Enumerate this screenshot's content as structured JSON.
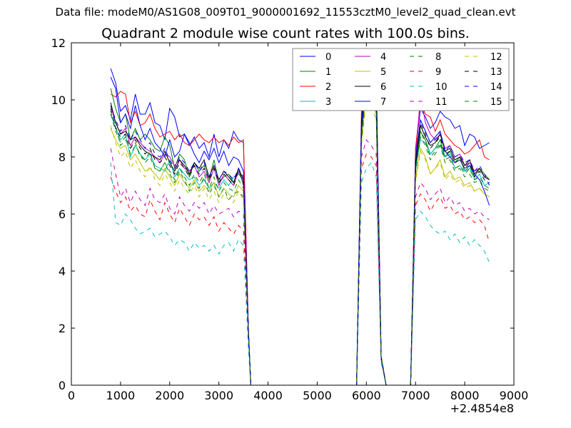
{
  "suptitle": "Data file: modeM0/AS1G08_009T01_9000001692_11553cztM0_level2_quad_clean.evt",
  "chart_data": {
    "type": "line",
    "title": "Quadrant 2 module wise count rates with 100.0s bins.",
    "xlabel": "",
    "ylabel": "",
    "x_offset_label": "+2.4854e8",
    "xlim": [
      0,
      9000
    ],
    "ylim": [
      0,
      12
    ],
    "xticks": [
      "0",
      "1000",
      "2000",
      "3000",
      "4000",
      "5000",
      "6000",
      "7000",
      "8000",
      "9000"
    ],
    "yticks": [
      "0",
      "2",
      "4",
      "6",
      "8",
      "10",
      "12"
    ],
    "grid": false,
    "legend_position": "top-right",
    "legend_columns": 4,
    "x": [
      800,
      900,
      1000,
      1100,
      1200,
      1300,
      1400,
      1500,
      1600,
      1700,
      1800,
      1900,
      2000,
      2100,
      2200,
      2300,
      2400,
      2500,
      2600,
      2700,
      2800,
      2900,
      3000,
      3100,
      3200,
      3300,
      3400,
      3500,
      3600,
      3650,
      3700,
      5800,
      5900,
      6000,
      6100,
      6200,
      6300,
      6400,
      6500,
      6900,
      7000,
      7100,
      7200,
      7300,
      7400,
      7500,
      7600,
      7700,
      7800,
      7900,
      8000,
      8100,
      8200,
      8300,
      8400,
      8500
    ],
    "series": [
      {
        "name": "0",
        "color": "#0000ff",
        "dash": "solid",
        "values": [
          11.1,
          10.6,
          9.6,
          9.8,
          9.3,
          10.2,
          9.5,
          9.5,
          9.9,
          9.2,
          9.1,
          8.6,
          9.7,
          9.4,
          8.7,
          8.8,
          8.4,
          8.7,
          8.3,
          8.5,
          8.0,
          8.8,
          8.0,
          8.6,
          8.3,
          8.9,
          8.6,
          8.5,
          2.0,
          0,
          0,
          0,
          8.8,
          11.8,
          11.6,
          11.0,
          1.0,
          0,
          0,
          0,
          8.2,
          9.7,
          9.4,
          9.0,
          9.2,
          9.6,
          9.4,
          9.3,
          9.0,
          9.1,
          8.4,
          8.8,
          8.7,
          8.3,
          8.4,
          8.5
        ]
      },
      {
        "name": "1",
        "color": "#008000",
        "dash": "solid",
        "values": [
          10.4,
          9.7,
          9.2,
          9.5,
          8.6,
          9.0,
          8.6,
          8.8,
          8.6,
          8.3,
          8.2,
          8.7,
          8.4,
          7.6,
          8.1,
          7.9,
          7.3,
          7.8,
          7.5,
          7.7,
          7.2,
          7.9,
          7.1,
          7.3,
          7.4,
          7.1,
          7.6,
          7.0,
          1.9,
          0,
          0,
          0,
          9.0,
          10.6,
          10.5,
          9.8,
          1.0,
          0,
          0,
          0,
          7.5,
          8.9,
          8.6,
          8.1,
          8.3,
          8.6,
          8.0,
          8.2,
          7.8,
          8.0,
          7.5,
          7.7,
          7.3,
          7.6,
          7.4,
          7.2
        ]
      },
      {
        "name": "2",
        "color": "#ff0000",
        "dash": "solid",
        "values": [
          10.2,
          10.1,
          10.3,
          10.2,
          9.2,
          9.6,
          9.1,
          9.2,
          9.5,
          9.0,
          8.7,
          8.8,
          8.9,
          8.6,
          8.8,
          8.5,
          8.4,
          8.6,
          8.8,
          8.6,
          8.5,
          8.7,
          8.5,
          8.6,
          8.4,
          8.7,
          8.5,
          8.6,
          2.0,
          0,
          0,
          0,
          9.6,
          11.2,
          11.6,
          10.9,
          1.0,
          0,
          0,
          0,
          8.3,
          9.9,
          9.5,
          9.4,
          8.9,
          9.3,
          8.8,
          8.6,
          8.4,
          8.3,
          8.1,
          8.2,
          8.4,
          8.6,
          8.0,
          7.9
        ]
      },
      {
        "name": "3",
        "color": "#00bfbf",
        "dash": "solid",
        "values": [
          9.5,
          9.0,
          8.6,
          8.8,
          8.0,
          8.4,
          8.1,
          7.9,
          8.1,
          7.7,
          7.6,
          7.5,
          7.9,
          7.3,
          7.6,
          7.4,
          7.2,
          7.3,
          7.0,
          7.2,
          6.9,
          7.1,
          6.9,
          7.2,
          7.0,
          7.3,
          7.4,
          7.2,
          1.8,
          0,
          0,
          0,
          8.9,
          10.5,
          10.3,
          9.7,
          1.0,
          0,
          0,
          0,
          7.6,
          8.6,
          8.5,
          8.1,
          8.3,
          8.4,
          8.0,
          8.1,
          7.6,
          7.7,
          7.5,
          7.6,
          7.2,
          7.4,
          7.0,
          7.1
        ]
      },
      {
        "name": "4",
        "color": "#bf00bf",
        "dash": "solid",
        "values": [
          9.8,
          9.2,
          8.8,
          9.0,
          8.4,
          8.7,
          8.5,
          8.3,
          8.2,
          8.0,
          7.8,
          8.1,
          8.0,
          7.7,
          7.9,
          7.6,
          7.5,
          7.7,
          7.3,
          7.5,
          7.1,
          7.6,
          7.0,
          7.4,
          7.2,
          7.0,
          7.5,
          7.1,
          1.9,
          0,
          0,
          0,
          9.1,
          11.6,
          11.5,
          10.6,
          1.0,
          0,
          0,
          0,
          7.8,
          10.2,
          9.2,
          8.8,
          8.6,
          8.8,
          8.3,
          8.4,
          8.0,
          8.1,
          7.7,
          7.8,
          7.5,
          7.6,
          7.3,
          7.2
        ]
      },
      {
        "name": "5",
        "color": "#bfbf00",
        "dash": "solid",
        "values": [
          9.0,
          8.6,
          8.3,
          8.4,
          7.9,
          8.1,
          7.8,
          7.5,
          7.6,
          7.4,
          7.2,
          7.6,
          7.3,
          7.0,
          7.4,
          7.1,
          6.9,
          7.2,
          6.8,
          7.0,
          6.8,
          7.1,
          6.6,
          6.9,
          6.7,
          6.6,
          7.0,
          6.8,
          1.8,
          0,
          0,
          0,
          8.5,
          10.2,
          10.1,
          9.5,
          1.0,
          0,
          0,
          0,
          7.2,
          8.3,
          8.0,
          7.4,
          7.6,
          7.9,
          7.3,
          7.5,
          7.2,
          7.3,
          7.0,
          7.1,
          6.8,
          6.9,
          6.7,
          6.6
        ]
      },
      {
        "name": "6",
        "color": "#000000",
        "dash": "solid",
        "values": [
          9.9,
          9.2,
          8.8,
          8.9,
          8.6,
          8.7,
          8.4,
          8.2,
          8.1,
          8.0,
          7.9,
          8.2,
          7.8,
          7.5,
          7.9,
          7.7,
          7.4,
          7.8,
          7.6,
          7.9,
          7.3,
          7.7,
          7.2,
          7.5,
          7.3,
          7.1,
          7.6,
          7.2,
          1.9,
          0,
          0,
          0,
          9.0,
          10.8,
          10.6,
          10.0,
          1.0,
          0,
          0,
          0,
          7.7,
          9.1,
          8.7,
          8.4,
          8.5,
          8.8,
          8.2,
          8.3,
          7.9,
          8.0,
          7.7,
          7.9,
          7.4,
          7.6,
          7.3,
          7.2
        ]
      },
      {
        "name": "7",
        "color": "#0000ff",
        "dash": "solid",
        "values": [
          10.8,
          10.4,
          9.2,
          9.5,
          9.0,
          9.8,
          9.1,
          8.6,
          9.0,
          8.5,
          8.3,
          8.0,
          8.6,
          8.0,
          8.2,
          8.8,
          8.5,
          8.1,
          7.8,
          8.2,
          7.9,
          8.3,
          7.8,
          8.2,
          7.7,
          8.0,
          7.9,
          7.5,
          1.9,
          0,
          0,
          0,
          9.3,
          11.3,
          11.2,
          10.7,
          1.0,
          0,
          0,
          0,
          7.9,
          9.3,
          8.9,
          8.5,
          8.7,
          8.9,
          8.2,
          8.0,
          7.8,
          7.9,
          7.6,
          7.7,
          7.4,
          7.2,
          6.8,
          6.3
        ]
      },
      {
        "name": "8",
        "color": "#008000",
        "dash": "dashed",
        "values": [
          9.6,
          9.1,
          8.4,
          8.6,
          8.3,
          8.5,
          8.0,
          7.9,
          8.2,
          7.6,
          7.5,
          7.8,
          7.4,
          7.1,
          7.5,
          7.2,
          6.8,
          7.1,
          6.9,
          7.3,
          6.7,
          7.0,
          6.6,
          6.9,
          6.5,
          6.7,
          6.8,
          6.6,
          1.8,
          0,
          0,
          0,
          8.6,
          10.4,
          10.2,
          9.6,
          1.0,
          0,
          0,
          0,
          7.4,
          8.7,
          8.4,
          7.9,
          8.1,
          8.4,
          7.8,
          7.9,
          7.5,
          7.6,
          7.3,
          7.4,
          7.1,
          7.2,
          6.9,
          6.8
        ]
      },
      {
        "name": "9",
        "color": "#ff0000",
        "dash": "dashed",
        "values": [
          7.3,
          6.8,
          6.4,
          6.6,
          6.1,
          6.3,
          6.0,
          5.9,
          6.5,
          6.1,
          5.8,
          6.4,
          6.0,
          5.7,
          6.2,
          5.9,
          5.6,
          6.0,
          5.8,
          5.9,
          5.6,
          5.9,
          5.4,
          5.7,
          5.5,
          5.3,
          5.6,
          5.4,
          1.6,
          0,
          0,
          0,
          7.6,
          8.1,
          8.0,
          7.7,
          0.9,
          0,
          0,
          0,
          6.3,
          6.7,
          6.5,
          6.1,
          6.4,
          6.6,
          6.2,
          6.3,
          6.0,
          6.1,
          5.8,
          5.9,
          5.7,
          5.8,
          5.6,
          5.0
        ]
      },
      {
        "name": "10",
        "color": "#00bfbf",
        "dash": "dashed",
        "values": [
          7.8,
          5.7,
          5.6,
          6.0,
          5.8,
          5.5,
          5.3,
          5.4,
          5.5,
          5.2,
          5.3,
          5.4,
          5.2,
          4.9,
          5.1,
          5.0,
          4.7,
          5.0,
          4.8,
          4.9,
          4.7,
          4.9,
          4.6,
          4.9,
          5.0,
          4.7,
          5.1,
          4.9,
          1.3,
          0,
          0,
          0,
          7.1,
          7.6,
          7.8,
          7.3,
          0.8,
          0,
          0,
          0,
          5.8,
          6.1,
          5.9,
          5.6,
          5.4,
          5.3,
          5.4,
          5.1,
          5.3,
          5.0,
          5.2,
          4.9,
          5.1,
          4.9,
          4.7,
          4.3
        ]
      },
      {
        "name": "11",
        "color": "#bf00bf",
        "dash": "dashed",
        "values": [
          8.3,
          7.4,
          6.6,
          6.9,
          6.4,
          6.8,
          6.5,
          6.3,
          6.9,
          6.5,
          6.4,
          6.7,
          6.2,
          6.0,
          6.6,
          6.3,
          6.1,
          6.4,
          6.2,
          6.4,
          6.0,
          6.3,
          6.0,
          6.1,
          6.2,
          5.9,
          6.1,
          6.0,
          1.7,
          0,
          0,
          0,
          8.0,
          8.6,
          8.4,
          8.1,
          0.9,
          0,
          0,
          0,
          6.6,
          7.1,
          6.9,
          6.5,
          6.7,
          6.9,
          6.4,
          6.6,
          6.3,
          6.4,
          6.1,
          6.2,
          6.0,
          6.1,
          5.9,
          5.8
        ]
      },
      {
        "name": "12",
        "color": "#bfbf00",
        "dash": "dashed",
        "values": [
          9.1,
          8.5,
          8.0,
          8.2,
          7.6,
          7.9,
          7.5,
          7.3,
          7.7,
          7.2,
          7.0,
          7.4,
          7.1,
          6.8,
          7.2,
          6.9,
          6.7,
          7.0,
          6.6,
          6.9,
          6.5,
          6.8,
          6.4,
          6.7,
          6.5,
          6.4,
          6.8,
          6.5,
          1.8,
          0,
          0,
          0,
          8.4,
          10.0,
          9.8,
          9.3,
          1.0,
          0,
          0,
          0,
          7.1,
          8.2,
          7.9,
          7.4,
          7.6,
          7.8,
          7.2,
          7.4,
          7.1,
          7.2,
          6.9,
          7.0,
          6.8,
          6.9,
          6.7,
          6.6
        ]
      },
      {
        "name": "13",
        "color": "#000000",
        "dash": "dashed",
        "values": [
          9.7,
          9.0,
          8.7,
          8.8,
          8.3,
          8.6,
          8.3,
          8.1,
          8.3,
          7.9,
          7.8,
          8.0,
          7.7,
          7.4,
          7.8,
          7.6,
          7.3,
          7.7,
          7.4,
          7.6,
          7.2,
          7.6,
          7.1,
          7.4,
          7.2,
          7.0,
          7.5,
          7.1,
          1.9,
          0,
          0,
          0,
          8.9,
          10.9,
          10.7,
          10.0,
          1.0,
          0,
          0,
          0,
          7.8,
          9.2,
          8.8,
          8.3,
          8.5,
          8.7,
          8.1,
          8.2,
          7.8,
          7.9,
          7.6,
          7.8,
          7.3,
          7.5,
          7.2,
          7.1
        ]
      },
      {
        "name": "14",
        "color": "#0000ff",
        "dash": "dashed",
        "values": [
          9.8,
          9.3,
          8.9,
          9.1,
          8.6,
          8.9,
          8.6,
          8.3,
          8.5,
          8.1,
          8.0,
          8.3,
          7.9,
          7.6,
          8.0,
          7.8,
          7.5,
          7.8,
          7.5,
          7.8,
          7.3,
          7.7,
          7.2,
          7.5,
          7.4,
          7.2,
          7.6,
          7.3,
          1.9,
          0,
          0,
          0,
          9.1,
          11.0,
          10.8,
          10.2,
          1.0,
          0,
          0,
          0,
          7.9,
          9.3,
          8.9,
          8.5,
          8.6,
          8.9,
          8.2,
          8.4,
          8.0,
          8.1,
          7.8,
          7.9,
          7.5,
          7.7,
          7.4,
          7.0
        ]
      },
      {
        "name": "15",
        "color": "#008000",
        "dash": "dashed",
        "values": [
          9.5,
          8.9,
          8.5,
          8.7,
          8.1,
          8.4,
          8.1,
          7.8,
          8.0,
          7.6,
          7.5,
          7.8,
          7.5,
          7.2,
          7.6,
          7.3,
          7.0,
          7.4,
          7.1,
          7.4,
          6.9,
          7.3,
          6.8,
          7.1,
          6.9,
          6.8,
          7.2,
          6.9,
          1.8,
          0,
          0,
          0,
          8.7,
          10.5,
          10.3,
          9.7,
          1.0,
          0,
          0,
          0,
          7.5,
          8.9,
          8.5,
          8.0,
          8.2,
          8.5,
          7.9,
          8.0,
          7.6,
          7.7,
          7.4,
          7.6,
          7.2,
          7.3,
          7.0,
          6.9
        ]
      }
    ]
  }
}
